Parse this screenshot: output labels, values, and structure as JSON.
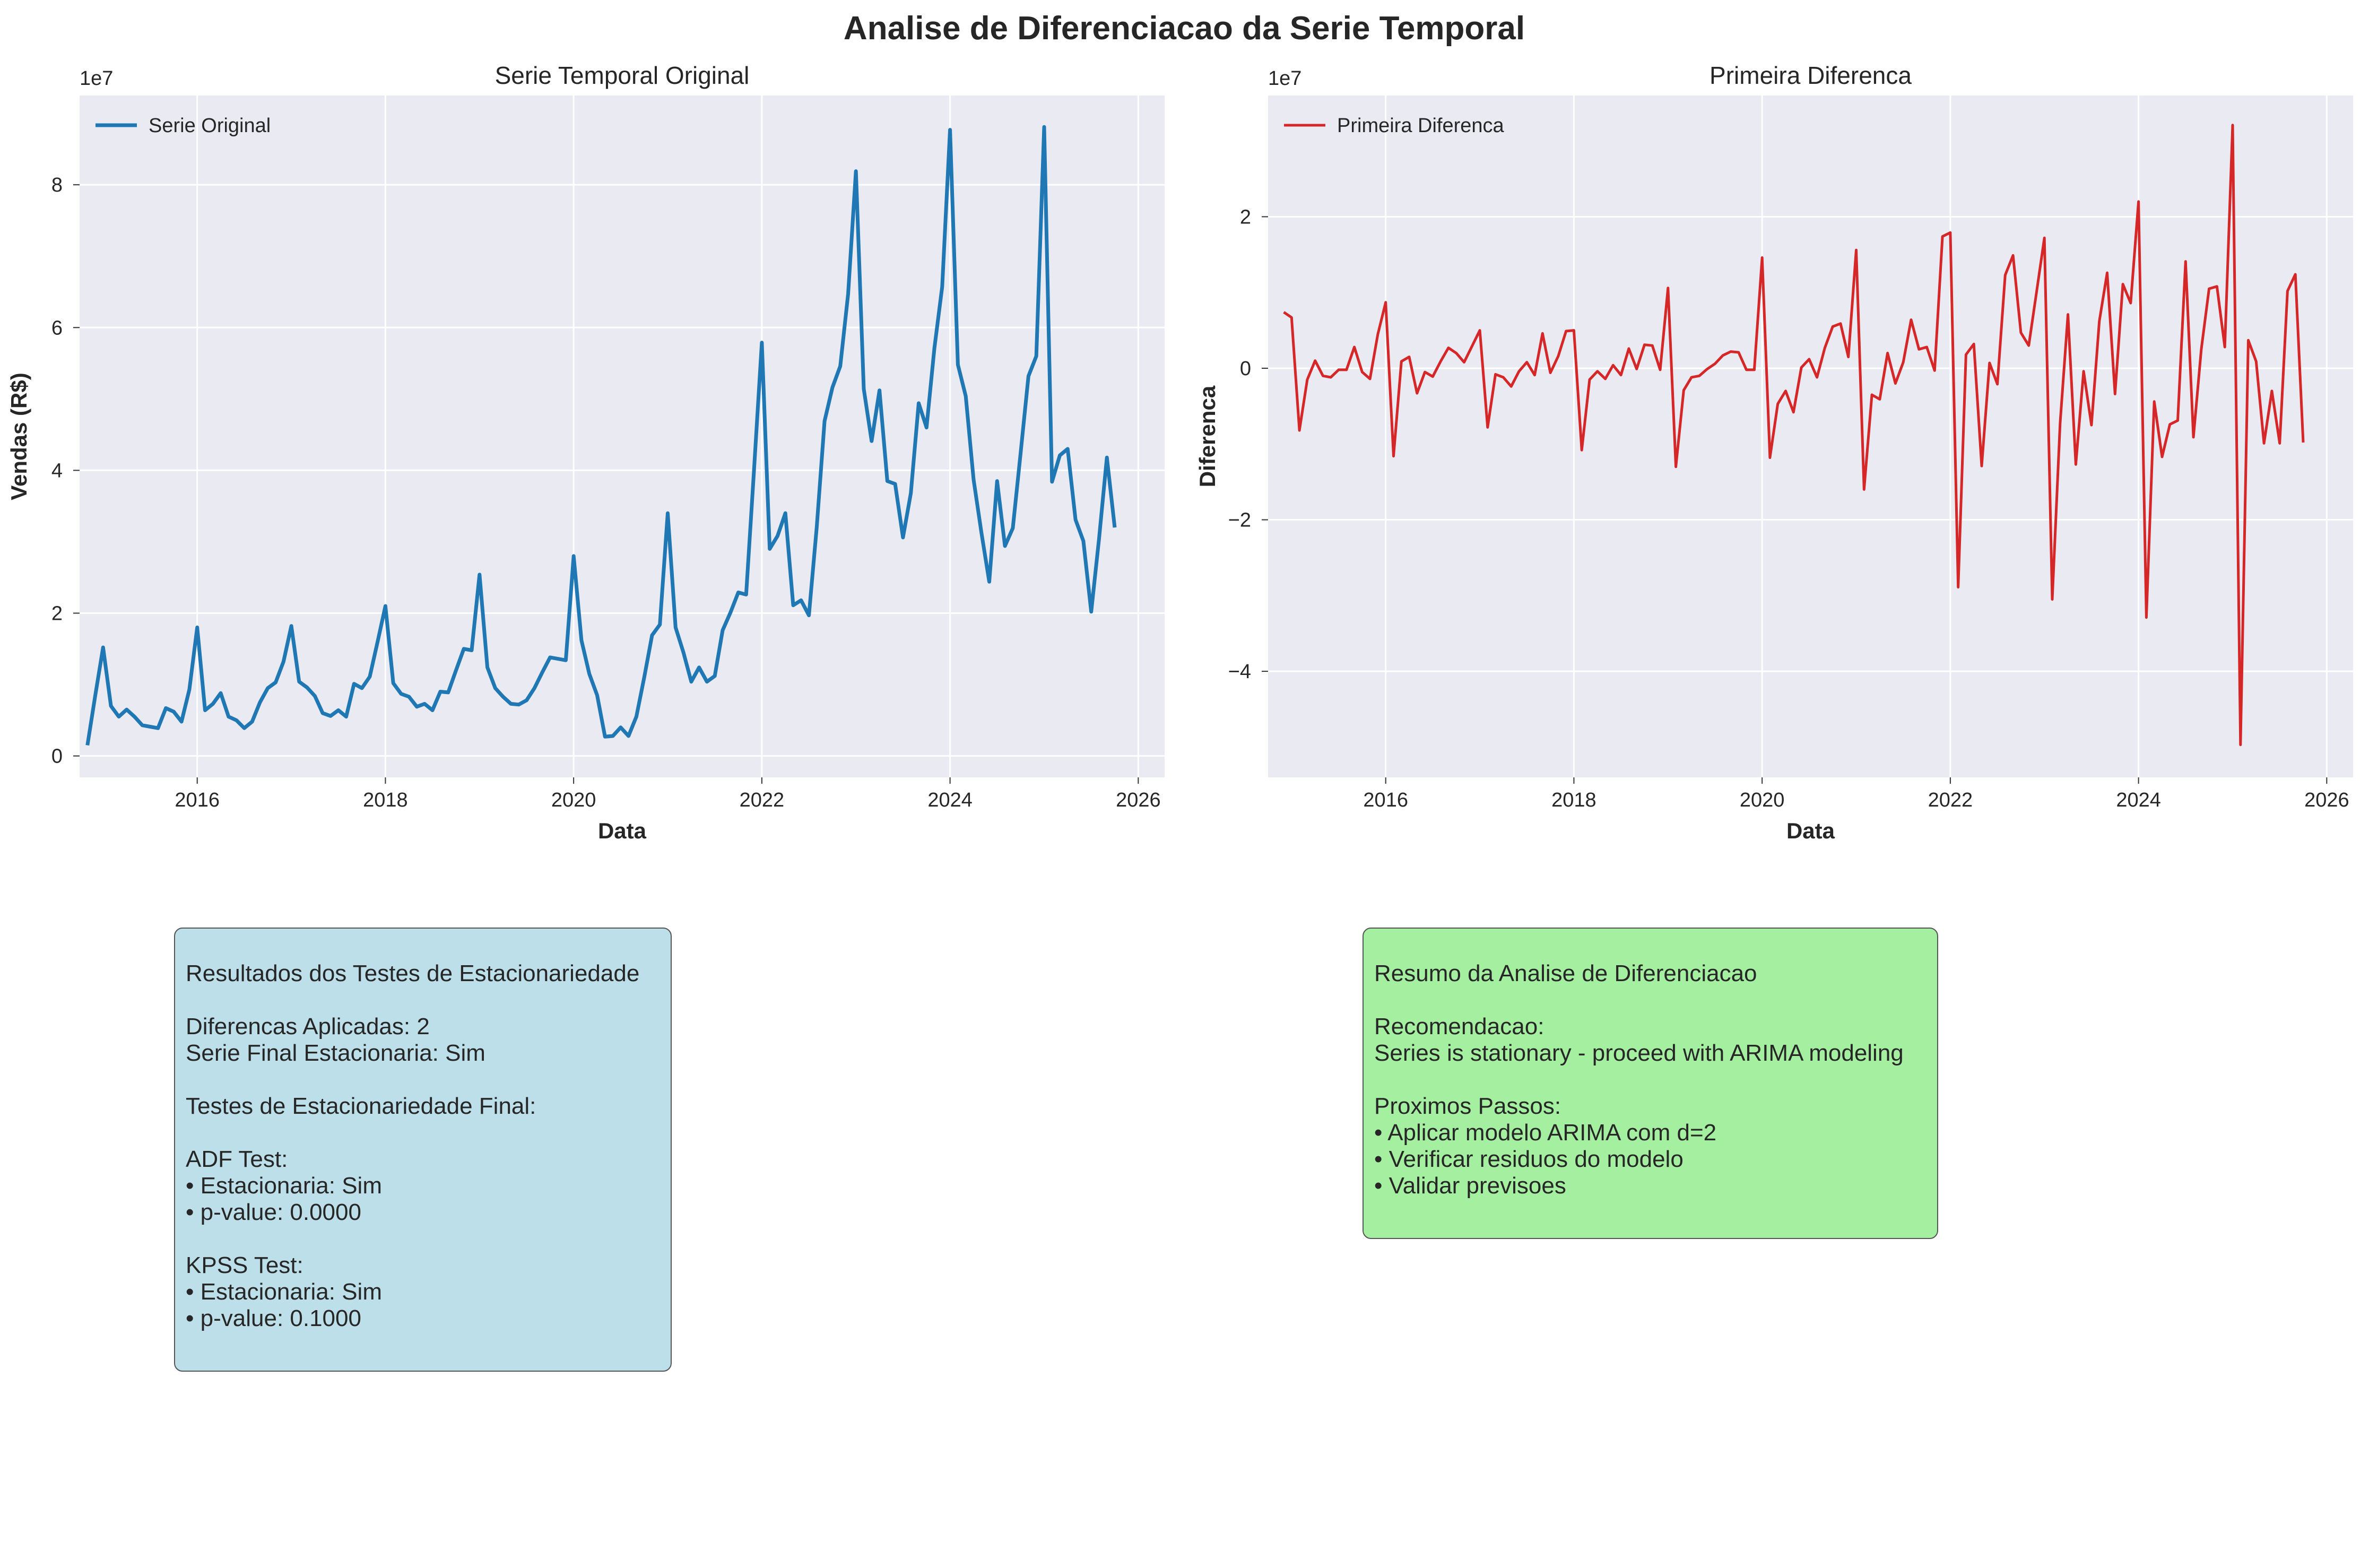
{
  "figure": {
    "title": "Analise de Diferenciacao da Serie Temporal"
  },
  "chart_data": [
    {
      "type": "line",
      "title": "Serie Temporal Original",
      "xlabel": "Data",
      "ylabel": "Vendas (R$)",
      "y_multiplier_label": "1e7",
      "xlim": [
        2014.75,
        2026.28
      ],
      "ylim": [
        -0.3,
        9.25
      ],
      "x_ticks": [
        2016,
        2018,
        2020,
        2022,
        2024,
        2026
      ],
      "x_tick_labels": [
        "2016",
        "2018",
        "2020",
        "2022",
        "2024",
        "2026"
      ],
      "y_ticks": [
        0,
        2,
        4,
        6,
        8
      ],
      "y_tick_labels": [
        "0",
        "2",
        "4",
        "6",
        "8"
      ],
      "grid": true,
      "legend_position": "upper-left",
      "series": [
        {
          "name": "Serie Original",
          "color": "#1f77b4",
          "start": "2014-11",
          "frequency": "monthly",
          "values": [
            0.15,
            0.85,
            1.52,
            0.7,
            0.55,
            0.65,
            0.55,
            0.43,
            0.41,
            0.39,
            0.67,
            0.62,
            0.48,
            0.93,
            1.8,
            0.64,
            0.73,
            0.88,
            0.55,
            0.5,
            0.39,
            0.48,
            0.75,
            0.95,
            1.03,
            1.32,
            1.82,
            1.04,
            0.96,
            0.84,
            0.6,
            0.56,
            0.64,
            0.55,
            1.01,
            0.95,
            1.11,
            1.6,
            2.1,
            1.02,
            0.87,
            0.83,
            0.69,
            0.73,
            0.64,
            0.9,
            0.89,
            1.2,
            1.5,
            1.48,
            2.54,
            1.24,
            0.95,
            0.83,
            0.73,
            0.72,
            0.78,
            0.95,
            1.17,
            1.38,
            1.36,
            1.34,
            2.8,
            1.62,
            1.15,
            0.85,
            0.27,
            0.28,
            0.4,
            0.28,
            0.55,
            1.1,
            1.69,
            1.84,
            3.4,
            1.8,
            1.45,
            1.04,
            1.24,
            1.04,
            1.12,
            1.76,
            2.01,
            2.29,
            2.26,
            4.0,
            5.79,
            2.9,
            3.08,
            3.4,
            2.11,
            2.18,
            1.97,
            3.2,
            4.69,
            5.16,
            5.46,
            6.47,
            8.19,
            5.14,
            4.41,
            5.12,
            3.85,
            3.81,
            3.06,
            3.68,
            4.94,
            4.6,
            5.71,
            6.57,
            8.77,
            5.48,
            5.04,
            3.87,
            3.13,
            2.44,
            3.85,
            2.94,
            3.19,
            4.24,
            5.32,
            5.6,
            8.81,
            3.84,
            4.21,
            4.3,
            3.31,
            3.01,
            2.02,
            3.04,
            4.18,
            3.2
          ]
        }
      ]
    },
    {
      "type": "line",
      "title": "Primeira Diferenca",
      "xlabel": "Data",
      "ylabel": "Diferenca",
      "y_multiplier_label": "1e7",
      "xlim": [
        2014.75,
        2026.28
      ],
      "ylim": [
        -5.4,
        3.6
      ],
      "x_ticks": [
        2016,
        2018,
        2020,
        2022,
        2024,
        2026
      ],
      "x_tick_labels": [
        "2016",
        "2018",
        "2020",
        "2022",
        "2024",
        "2026"
      ],
      "y_ticks": [
        -4,
        -2,
        0,
        2
      ],
      "y_tick_labels": [
        "−4",
        "−2",
        "0",
        "2"
      ],
      "grid": true,
      "legend_position": "upper-left",
      "series": [
        {
          "name": "Primeira Diferenca",
          "color": "#d62728",
          "start": "2014-12",
          "frequency": "monthly",
          "values": [
            0.74,
            0.67,
            -0.82,
            -0.15,
            0.1,
            -0.1,
            -0.12,
            -0.02,
            -0.02,
            0.28,
            -0.05,
            -0.14,
            0.45,
            0.87,
            -1.16,
            0.09,
            0.15,
            -0.33,
            -0.05,
            -0.11,
            0.09,
            0.27,
            0.2,
            0.08,
            0.29,
            0.5,
            -0.78,
            -0.08,
            -0.12,
            -0.24,
            -0.04,
            0.08,
            -0.09,
            0.46,
            -0.06,
            0.16,
            0.49,
            0.5,
            -1.08,
            -0.15,
            -0.04,
            -0.14,
            0.04,
            -0.09,
            0.26,
            -0.01,
            0.31,
            0.3,
            -0.02,
            1.06,
            -1.3,
            -0.29,
            -0.12,
            -0.1,
            -0.01,
            0.06,
            0.17,
            0.22,
            0.21,
            -0.02,
            -0.02,
            1.46,
            -1.18,
            -0.47,
            -0.3,
            -0.58,
            0.01,
            0.12,
            -0.12,
            0.27,
            0.55,
            0.59,
            0.15,
            1.56,
            -1.6,
            -0.35,
            -0.41,
            0.2,
            -0.2,
            0.08,
            0.64,
            0.25,
            0.28,
            -0.03,
            1.74,
            1.79,
            -2.89,
            0.18,
            0.32,
            -1.29,
            0.07,
            -0.21,
            1.23,
            1.49,
            0.47,
            0.3,
            1.01,
            1.72,
            -3.05,
            -0.73,
            0.71,
            -1.27,
            -0.04,
            -0.75,
            0.62,
            1.26,
            -0.34,
            1.11,
            0.86,
            2.2,
            -3.29,
            -0.44,
            -1.17,
            -0.74,
            -0.69,
            1.41,
            -0.91,
            0.25,
            1.05,
            1.08,
            0.28,
            3.21,
            -4.97,
            0.37,
            0.09,
            -0.99,
            -0.3,
            -0.99,
            1.02,
            1.24,
            -0.98
          ]
        }
      ]
    }
  ],
  "panels": {
    "tests": {
      "lines": [
        "Resultados dos Testes de Estacionariedade",
        "",
        "Diferencas Aplicadas: 2",
        "Serie Final Estacionaria: Sim",
        "",
        "Testes de Estacionariedade Final:",
        "",
        "ADF Test:",
        "• Estacionaria: Sim",
        "• p-value: 0.0000",
        "",
        "KPSS Test:",
        "• Estacionaria: Sim",
        "• p-value: 0.1000"
      ]
    },
    "summary": {
      "lines": [
        "Resumo da Analise de Diferenciacao",
        "",
        "Recomendacao:",
        "Series is stationary - proceed with ARIMA modeling",
        "",
        "Proximos Passos:",
        "• Aplicar modelo ARIMA com d=2",
        "• Verificar residuos do modelo",
        "• Validar previsoes"
      ]
    }
  }
}
